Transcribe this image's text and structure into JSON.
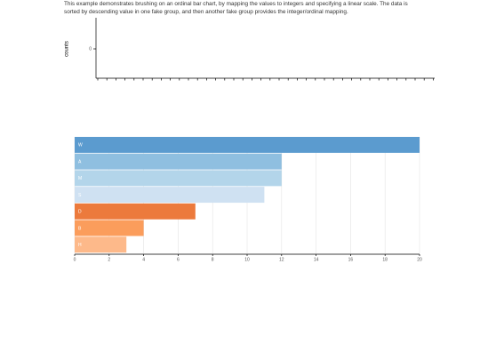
{
  "description": "This example demonstrates brushing on an ordinal bar chart, by mapping the values to integers and specifying a linear scale. The data is sorted by descending value in one fake group, and then another fake group provides the integer/ordinal mapping.",
  "chart_data": [
    {
      "type": "bar",
      "ylabel": "counts",
      "yticks": [
        0
      ]
    },
    {
      "type": "row",
      "categories": [
        "W",
        "A",
        "M",
        "S",
        "D",
        "B",
        "H"
      ],
      "values": [
        20,
        12,
        12,
        11,
        7,
        4,
        3
      ],
      "colors": [
        "#5b9bcf",
        "#8fbfe0",
        "#b3d5ea",
        "#cfe1f2",
        "#ec7a3c",
        "#fb9d5c",
        "#fdb98a"
      ],
      "xlim": [
        0,
        20
      ],
      "xticks": [
        0,
        2,
        4,
        6,
        8,
        10,
        12,
        14,
        16,
        18,
        20
      ],
      "grid": true
    }
  ]
}
